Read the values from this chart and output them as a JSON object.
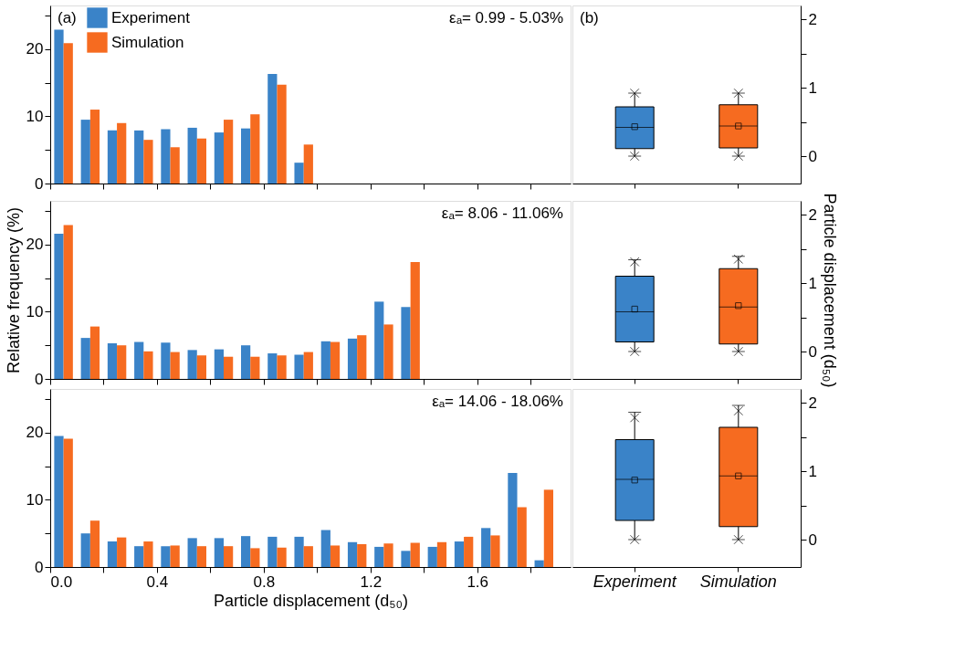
{
  "chart_data": [
    {
      "type": "bar",
      "x": [
        0.05,
        0.15,
        0.25,
        0.35,
        0.45,
        0.55,
        0.65,
        0.75,
        0.85,
        0.95
      ],
      "xlim": [
        0,
        1.95
      ],
      "xticks": [
        0,
        0.2,
        0.4,
        0.6,
        0.8,
        1.0,
        1.2,
        1.4,
        1.6,
        1.8
      ],
      "ylim": [
        0,
        26.5
      ],
      "yticks": [
        0,
        {
          "value": 5,
          "label": null
        },
        10,
        {
          "value": 15,
          "label": null
        },
        20,
        {
          "value": 25,
          "label": null
        }
      ],
      "tick_labels": "y",
      "grid": false,
      "legend": "top left",
      "annotations": [
        "(a)",
        "εₐ= 0.99 - 5.03%"
      ],
      "series": [
        {
          "name": "Experiment",
          "color": "#3a83c8",
          "values": [
            22.9,
            9.5,
            7.9,
            7.9,
            8.1,
            8.3,
            7.6,
            8.2,
            16.3,
            3.1
          ]
        },
        {
          "name": "Simulation",
          "color": "#f66b20",
          "values": [
            20.9,
            11.0,
            9.0,
            6.5,
            5.4,
            6.7,
            9.5,
            10.3,
            14.7,
            5.8
          ]
        }
      ]
    },
    {
      "type": "box",
      "categories": [
        null,
        null
      ],
      "colors": [
        "#3a83c8",
        "#f66b20"
      ],
      "ylim": [
        -0.4,
        2.2
      ],
      "yticks": [
        0,
        {
          "value": 0.5,
          "label": null
        },
        1,
        {
          "value": 1.5,
          "label": null
        },
        2
      ],
      "tick_labels": "y",
      "grid": false,
      "annotations": [
        "(b)"
      ],
      "boxes": [
        {
          "low": 0,
          "q1": 0.11,
          "median": 0.42,
          "q3": 0.72,
          "high": 0.92,
          "mean": 0.43,
          "outliers": [
            0,
            0.92
          ]
        },
        {
          "low": 0,
          "q1": 0.12,
          "median": 0.44,
          "q3": 0.75,
          "high": 0.92,
          "mean": 0.44,
          "outliers": [
            0,
            0.92
          ]
        }
      ]
    },
    {
      "type": "bar",
      "x": [
        0.05,
        0.15,
        0.25,
        0.35,
        0.45,
        0.55,
        0.65,
        0.75,
        0.85,
        0.95,
        1.05,
        1.15,
        1.25,
        1.35
      ],
      "xlim": [
        0,
        1.95
      ],
      "xticks": [
        0,
        0.2,
        0.4,
        0.6,
        0.8,
        1.0,
        1.2,
        1.4,
        1.6,
        1.8
      ],
      "ylim": [
        0,
        26.5
      ],
      "yticks": [
        0,
        {
          "value": 5,
          "label": null
        },
        10,
        {
          "value": 15,
          "label": null
        },
        20,
        {
          "value": 25,
          "label": null
        }
      ],
      "tick_labels": "y",
      "grid": false,
      "ylabel": "Relative frequency (%)",
      "annotations": [
        "εₐ= 8.06 - 11.06%"
      ],
      "series": [
        {
          "color": "#3a83c8",
          "values": [
            21.6,
            6.1,
            5.3,
            5.5,
            5.4,
            4.3,
            4.4,
            5.0,
            3.8,
            3.6,
            5.6,
            6.0,
            11.5,
            10.7
          ]
        },
        {
          "color": "#f66b20",
          "values": [
            22.9,
            7.8,
            5.0,
            4.1,
            4.0,
            3.5,
            3.3,
            3.3,
            3.5,
            4.0,
            5.5,
            6.5,
            8.1,
            17.4
          ]
        }
      ]
    },
    {
      "type": "box",
      "categories": [
        null,
        null
      ],
      "colors": [
        "#3a83c8",
        "#f66b20"
      ],
      "ylim": [
        -0.4,
        2.2
      ],
      "yticks": [
        0,
        {
          "value": 0.5,
          "label": null
        },
        1,
        {
          "value": 1.5,
          "label": null
        },
        2
      ],
      "tick_labels": "y",
      "grid": false,
      "ylabel": "Particle displacement (d₅₀)",
      "boxes": [
        {
          "low": 0,
          "q1": 0.14,
          "median": 0.58,
          "q3": 1.1,
          "high": 1.34,
          "mean": 0.62,
          "outliers": [
            0,
            1.31
          ]
        },
        {
          "low": 0,
          "q1": 0.11,
          "median": 0.65,
          "q3": 1.21,
          "high": 1.39,
          "mean": 0.67,
          "outliers": [
            0,
            1.35
          ]
        }
      ]
    },
    {
      "type": "bar",
      "x": [
        0.05,
        0.15,
        0.25,
        0.35,
        0.45,
        0.55,
        0.65,
        0.75,
        0.85,
        0.95,
        1.05,
        1.15,
        1.25,
        1.35,
        1.45,
        1.55,
        1.65,
        1.75,
        1.85
      ],
      "xlim": [
        0,
        1.95
      ],
      "xticks": [
        {
          "value": 0,
          "label": "0.0"
        },
        {
          "value": 0.2,
          "label": null
        },
        0.4,
        {
          "value": 0.6,
          "label": null
        },
        0.8,
        {
          "value": 1.0,
          "label": null
        },
        1.2,
        {
          "value": 1.4,
          "label": null
        },
        1.6,
        {
          "value": 1.8,
          "label": null
        }
      ],
      "ylim": [
        0,
        26.5
      ],
      "yticks": [
        0,
        {
          "value": 5,
          "label": null
        },
        10,
        {
          "value": 15,
          "label": null
        },
        20,
        {
          "value": 25,
          "label": null
        }
      ],
      "grid": false,
      "xlabel": "Particle displacement (d₅₀)",
      "annotations": [
        "εₐ= 14.06 - 18.06%"
      ],
      "series": [
        {
          "color": "#3a83c8",
          "values": [
            19.5,
            5.0,
            3.8,
            3.1,
            3.1,
            4.3,
            4.3,
            4.6,
            4.5,
            4.5,
            5.5,
            3.7,
            3.0,
            2.4,
            3.0,
            3.8,
            5.8,
            14.0,
            1.0
          ]
        },
        {
          "color": "#f66b20",
          "values": [
            19.1,
            6.9,
            4.4,
            3.8,
            3.2,
            3.1,
            3.1,
            2.8,
            2.9,
            3.1,
            3.2,
            3.4,
            3.5,
            3.6,
            3.7,
            4.5,
            4.7,
            8.9,
            11.5
          ]
        }
      ]
    },
    {
      "type": "box",
      "categories": [
        "Experiment",
        "Simulation"
      ],
      "colors": [
        "#3a83c8",
        "#f66b20"
      ],
      "ylim": [
        -0.4,
        2.2
      ],
      "yticks": [
        0,
        {
          "value": 0.5,
          "label": null
        },
        1,
        {
          "value": 1.5,
          "label": null
        },
        2
      ],
      "grid": false,
      "boxes": [
        {
          "low": 0,
          "q1": 0.28,
          "median": 0.88,
          "q3": 1.46,
          "high": 1.86,
          "mean": 0.87,
          "outliers": [
            0,
            1.78
          ]
        },
        {
          "low": 0,
          "q1": 0.19,
          "median": 0.93,
          "q3": 1.64,
          "high": 1.96,
          "mean": 0.93,
          "outliers": [
            0,
            1.88
          ]
        }
      ]
    }
  ]
}
